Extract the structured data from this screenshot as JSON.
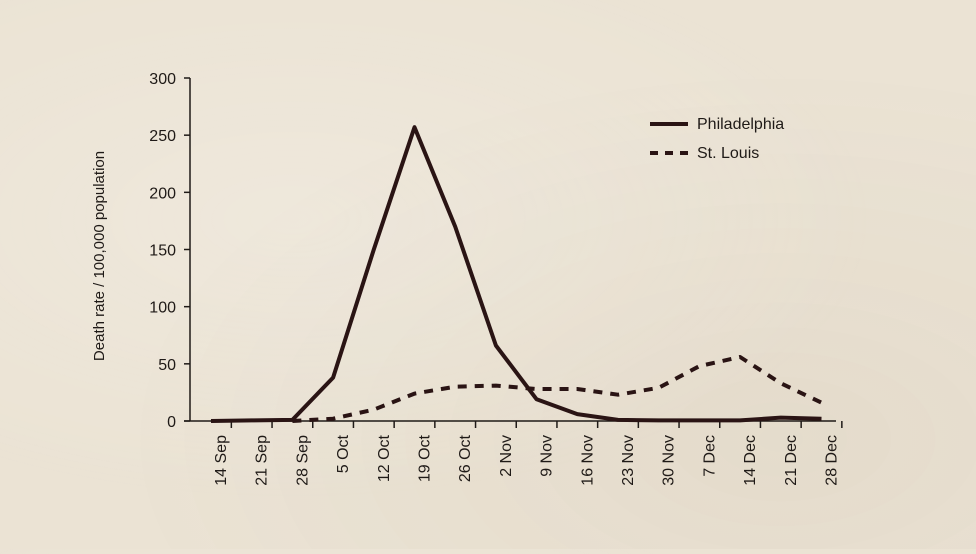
{
  "chart_data": {
    "type": "line",
    "title": "",
    "xlabel": "",
    "ylabel": "Death rate / 100,000 population",
    "categories": [
      "14 Sep",
      "21 Sep",
      "28 Sep",
      "5 Oct",
      "12 Oct",
      "19 Oct",
      "26 Oct",
      "2 Nov",
      "9 Nov",
      "16 Nov",
      "23 Nov",
      "30 Nov",
      "7 Dec",
      "14 Dec",
      "21 Dec",
      "28 Dec"
    ],
    "ylim": [
      0,
      300
    ],
    "yticks": [
      0,
      50,
      100,
      150,
      200,
      250,
      300
    ],
    "grid": false,
    "legend_position": "top-right",
    "series": [
      {
        "name": "Philadelphia",
        "style": "solid",
        "color": "#2a1414",
        "points": [
          {
            "x": "14 Sep",
            "y": 0
          },
          {
            "x": "21 Sep",
            "y": 0.5
          },
          {
            "x": "28 Sep",
            "y": 1
          },
          {
            "x": "5 Oct",
            "y": 38
          },
          {
            "x": "12 Oct",
            "y": 150
          },
          {
            "x": "19 Oct",
            "y": 257
          },
          {
            "x": "26 Oct",
            "y": 170
          },
          {
            "x": "2 Nov",
            "y": 66
          },
          {
            "x": "9 Nov",
            "y": 19
          },
          {
            "x": "16 Nov",
            "y": 6
          },
          {
            "x": "23 Nov",
            "y": 1
          },
          {
            "x": "30 Nov",
            "y": 0.5
          },
          {
            "x": "7 Dec",
            "y": 0.5
          },
          {
            "x": "14 Dec",
            "y": 0.5
          },
          {
            "x": "21 Dec",
            "y": 3
          },
          {
            "x": "28 Dec",
            "y": 2
          }
        ]
      },
      {
        "name": "St. Louis",
        "style": "dashed",
        "color": "#2a1414",
        "points": [
          {
            "x": "28 Sep",
            "y": 0
          },
          {
            "x": "5 Oct",
            "y": 2
          },
          {
            "x": "12 Oct",
            "y": 10
          },
          {
            "x": "19 Oct",
            "y": 24
          },
          {
            "x": "26 Oct",
            "y": 30
          },
          {
            "x": "2 Nov",
            "y": 31
          },
          {
            "x": "9 Nov",
            "y": 28
          },
          {
            "x": "16 Nov",
            "y": 28
          },
          {
            "x": "23 Nov",
            "y": 23
          },
          {
            "x": "30 Nov",
            "y": 29
          },
          {
            "x": "7 Dec",
            "y": 48
          },
          {
            "x": "14 Dec",
            "y": 56
          },
          {
            "x": "21 Dec",
            "y": 33
          },
          {
            "x": "28 Dec",
            "y": 16
          }
        ]
      }
    ]
  }
}
